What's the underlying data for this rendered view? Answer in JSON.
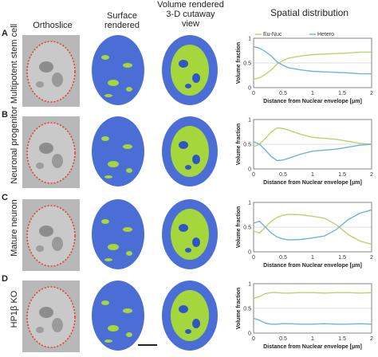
{
  "headers": {
    "orthoslice": "Orthoslice",
    "surface": "Surface rendered",
    "volume": "Volume rendered 3-D cutaway view",
    "spatial": "Spatial distribution"
  },
  "legend": {
    "a": "Eu-Nuc",
    "b": "Hetero"
  },
  "colors": {
    "eu": "#b7d56a",
    "hetero": "#6fb3e0",
    "render_blue": "#4a6ed6",
    "render_green": "#a5d63b"
  },
  "rows": [
    {
      "letter": "A",
      "label": "Multipotent stem cell",
      "chart_data": {
        "type": "line",
        "xlabel": "Distance from Nuclear envelope [μm]",
        "ylabel": "Volume fraction",
        "xlim": [
          0,
          2
        ],
        "ylim": [
          0,
          1
        ],
        "xticks": [
          "0",
          "0.5",
          "1",
          "1.5",
          "2"
        ],
        "yticks": [
          "0",
          "0.5",
          "1"
        ],
        "x": [
          0,
          0.1,
          0.2,
          0.3,
          0.4,
          0.5,
          0.6,
          0.8,
          1.0,
          1.2,
          1.4,
          1.6,
          1.8,
          2.0
        ],
        "series": [
          {
            "name": "Eu-Nuc",
            "values": [
              0.17,
              0.2,
              0.27,
              0.36,
              0.48,
              0.55,
              0.6,
              0.64,
              0.67,
              0.68,
              0.69,
              0.7,
              0.72,
              0.72
            ]
          },
          {
            "name": "Hetero",
            "values": [
              0.83,
              0.8,
              0.73,
              0.64,
              0.52,
              0.45,
              0.4,
              0.36,
              0.33,
              0.32,
              0.31,
              0.3,
              0.28,
              0.28
            ]
          }
        ]
      }
    },
    {
      "letter": "B",
      "label": "Neuronal progenitor",
      "chart_data": {
        "type": "line",
        "xlabel": "Distance from Nuclear envelope [μm]",
        "ylabel": "Volume fraction",
        "xlim": [
          0,
          2
        ],
        "ylim": [
          0,
          1
        ],
        "xticks": [
          "0",
          "0.5",
          "1",
          "1.5",
          "2"
        ],
        "yticks": [
          "0",
          "0.5",
          "1"
        ],
        "x": [
          0,
          0.1,
          0.2,
          0.3,
          0.4,
          0.5,
          0.6,
          0.8,
          1.0,
          1.2,
          1.4,
          1.6,
          1.8,
          2.0
        ],
        "series": [
          {
            "name": "Eu-Nuc",
            "values": [
              0.45,
              0.5,
              0.62,
              0.75,
              0.83,
              0.82,
              0.78,
              0.7,
              0.64,
              0.62,
              0.6,
              0.56,
              0.52,
              0.5
            ]
          },
          {
            "name": "Hetero",
            "values": [
              0.55,
              0.5,
              0.38,
              0.25,
              0.17,
              0.18,
              0.22,
              0.3,
              0.36,
              0.38,
              0.4,
              0.44,
              0.48,
              0.5
            ]
          }
        ]
      }
    },
    {
      "letter": "C",
      "label": "Mature neuron",
      "chart_data": {
        "type": "line",
        "xlabel": "Distance from Nuclear envelope [μm]",
        "ylabel": "Volume fraction",
        "xlim": [
          0,
          2
        ],
        "ylim": [
          0,
          1
        ],
        "xticks": [
          "0",
          "0.5",
          "1",
          "1.5",
          "2"
        ],
        "yticks": [
          "0",
          "0.5",
          "1"
        ],
        "x": [
          0,
          0.1,
          0.2,
          0.3,
          0.4,
          0.5,
          0.6,
          0.8,
          1.0,
          1.2,
          1.4,
          1.6,
          1.8,
          2.0
        ],
        "series": [
          {
            "name": "Eu-Nuc",
            "values": [
              0.42,
              0.38,
              0.5,
              0.62,
              0.7,
              0.74,
              0.76,
              0.75,
              0.72,
              0.68,
              0.55,
              0.35,
              0.22,
              0.15
            ]
          },
          {
            "name": "Hetero",
            "values": [
              0.58,
              0.62,
              0.5,
              0.38,
              0.3,
              0.26,
              0.24,
              0.25,
              0.28,
              0.32,
              0.45,
              0.65,
              0.78,
              0.85
            ]
          }
        ]
      }
    },
    {
      "letter": "D",
      "label": "HP1β KO",
      "chart_data": {
        "type": "line",
        "xlabel": "Distance from Nuclear envelope [μm]",
        "ylabel": "Volume fraction",
        "xlim": [
          0,
          2
        ],
        "ylim": [
          0,
          1
        ],
        "xticks": [
          "0",
          "0.5",
          "1",
          "1.5",
          "2"
        ],
        "yticks": [
          "0",
          "0.5",
          "1"
        ],
        "x": [
          0,
          0.1,
          0.2,
          0.3,
          0.4,
          0.5,
          0.6,
          0.8,
          1.0,
          1.2,
          1.4,
          1.6,
          1.8,
          2.0
        ],
        "series": [
          {
            "name": "Eu-Nuc",
            "values": [
              0.7,
              0.74,
              0.8,
              0.82,
              0.82,
              0.81,
              0.81,
              0.82,
              0.82,
              0.81,
              0.82,
              0.82,
              0.81,
              0.82
            ]
          },
          {
            "name": "Hetero",
            "values": [
              0.3,
              0.26,
              0.2,
              0.18,
              0.18,
              0.19,
              0.19,
              0.18,
              0.18,
              0.19,
              0.18,
              0.18,
              0.19,
              0.18
            ]
          }
        ]
      }
    }
  ]
}
